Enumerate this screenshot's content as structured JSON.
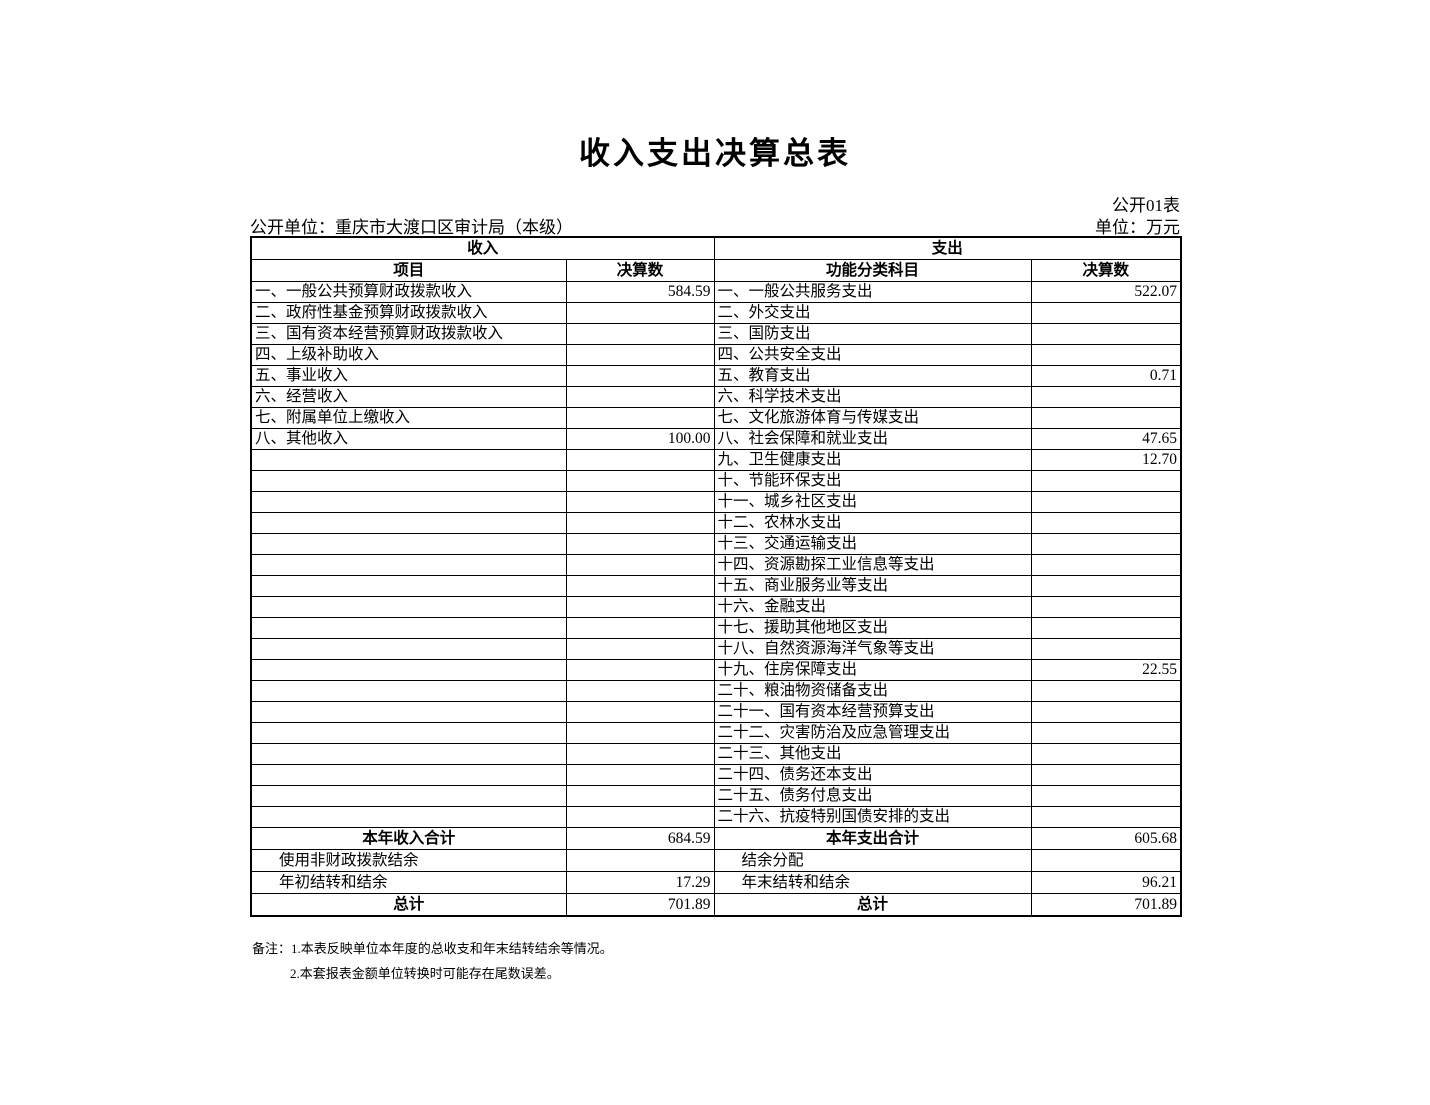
{
  "page": {
    "title": "收入支出决算总表",
    "table_code": "公开01表",
    "publish_unit": "公开单位：重庆市大渡口区审计局（本级）",
    "unit_measure": "单位：万元"
  },
  "table": {
    "income_header": "收入",
    "expense_header": "支出",
    "income_item_col": "项目",
    "income_amount_col": "决算数",
    "expense_item_col": "功能分类科目",
    "expense_amount_col": "决算数",
    "rows": [
      {
        "income_item": "一、一般公共预算财政拨款收入",
        "income_value": "584.59",
        "expense_item": "一、一般公共服务支出",
        "expense_value": "522.07"
      },
      {
        "income_item": "二、政府性基金预算财政拨款收入",
        "income_value": "",
        "expense_item": "二、外交支出",
        "expense_value": ""
      },
      {
        "income_item": "三、国有资本经营预算财政拨款收入",
        "income_value": "",
        "expense_item": "三、国防支出",
        "expense_value": ""
      },
      {
        "income_item": "四、上级补助收入",
        "income_value": "",
        "expense_item": "四、公共安全支出",
        "expense_value": ""
      },
      {
        "income_item": "五、事业收入",
        "income_value": "",
        "expense_item": "五、教育支出",
        "expense_value": "0.71"
      },
      {
        "income_item": "六、经营收入",
        "income_value": "",
        "expense_item": "六、科学技术支出",
        "expense_value": ""
      },
      {
        "income_item": "七、附属单位上缴收入",
        "income_value": "",
        "expense_item": "七、文化旅游体育与传媒支出",
        "expense_value": ""
      },
      {
        "income_item": "八、其他收入",
        "income_value": "100.00",
        "expense_item": "八、社会保障和就业支出",
        "expense_value": "47.65"
      },
      {
        "income_item": "",
        "income_value": "",
        "expense_item": "九、卫生健康支出",
        "expense_value": "12.70"
      },
      {
        "income_item": "",
        "income_value": "",
        "expense_item": "十、节能环保支出",
        "expense_value": ""
      },
      {
        "income_item": "",
        "income_value": "",
        "expense_item": "十一、城乡社区支出",
        "expense_value": ""
      },
      {
        "income_item": "",
        "income_value": "",
        "expense_item": "十二、农林水支出",
        "expense_value": ""
      },
      {
        "income_item": "",
        "income_value": "",
        "expense_item": "十三、交通运输支出",
        "expense_value": ""
      },
      {
        "income_item": "",
        "income_value": "",
        "expense_item": "十四、资源勘探工业信息等支出",
        "expense_value": ""
      },
      {
        "income_item": "",
        "income_value": "",
        "expense_item": "十五、商业服务业等支出",
        "expense_value": ""
      },
      {
        "income_item": "",
        "income_value": "",
        "expense_item": "十六、金融支出",
        "expense_value": ""
      },
      {
        "income_item": "",
        "income_value": "",
        "expense_item": "十七、援助其他地区支出",
        "expense_value": ""
      },
      {
        "income_item": "",
        "income_value": "",
        "expense_item": "十八、自然资源海洋气象等支出",
        "expense_value": ""
      },
      {
        "income_item": "",
        "income_value": "",
        "expense_item": "十九、住房保障支出",
        "expense_value": "22.55"
      },
      {
        "income_item": "",
        "income_value": "",
        "expense_item": "二十、粮油物资储备支出",
        "expense_value": ""
      },
      {
        "income_item": "",
        "income_value": "",
        "expense_item": "二十一、国有资本经营预算支出",
        "expense_value": ""
      },
      {
        "income_item": "",
        "income_value": "",
        "expense_item": "二十二、灾害防治及应急管理支出",
        "expense_value": ""
      },
      {
        "income_item": "",
        "income_value": "",
        "expense_item": "二十三、其他支出",
        "expense_value": ""
      },
      {
        "income_item": "",
        "income_value": "",
        "expense_item": "二十四、债务还本支出",
        "expense_value": ""
      },
      {
        "income_item": "",
        "income_value": "",
        "expense_item": "二十五、债务付息支出",
        "expense_value": ""
      },
      {
        "income_item": "",
        "income_value": "",
        "expense_item": "二十六、抗疫特别国债安排的支出",
        "expense_value": ""
      }
    ],
    "summary_rows": [
      {
        "income_item": "本年收入合计",
        "income_value": "684.59",
        "expense_item": "本年支出合计",
        "expense_value": "605.68",
        "is_total": true
      },
      {
        "income_item": "使用非财政拨款结余",
        "income_value": "",
        "expense_item": "结余分配",
        "expense_value": "",
        "is_total": false
      },
      {
        "income_item": "年初结转和结余",
        "income_value": "17.29",
        "expense_item": "年末结转和结余",
        "expense_value": "96.21",
        "is_total": false
      },
      {
        "income_item": "总计",
        "income_value": "701.89",
        "expense_item": "总计",
        "expense_value": "701.89",
        "is_total": true
      }
    ]
  },
  "notes": [
    "备注：1.本表反映单位本年度的总收支和年末结转结余等情况。",
    "2.本套报表金额单位转换时可能存在尾数误差。"
  ]
}
